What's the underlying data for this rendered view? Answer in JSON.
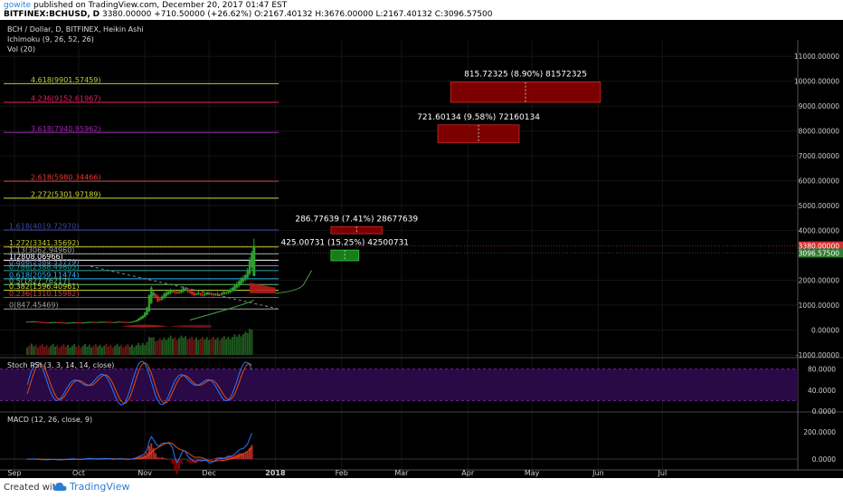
{
  "header": {
    "author": "gowite",
    "published_text": "published on TradingView.com, December 20, 2017 01:47 EST",
    "symbol": "BITFINEX:BCHUSD,",
    "interval": "D",
    "last": "3380.00000",
    "change": "+710.50000 (+26.62%)",
    "open_label": "O:",
    "open": "2167.40132",
    "high_label": "H:",
    "high": "3676.00000",
    "low_label": "L:",
    "low": "2167.40132",
    "close_label": "C:",
    "close": "3096.57500"
  },
  "legend": {
    "title": "BCH / Dollar, D, BITFINEX, Heikin Ashi",
    "ichimoku": "Ichimoku (9, 26, 52, 26)",
    "vol": "Vol (20)"
  },
  "footer": {
    "created_with": "Created with",
    "brand": "TradingView",
    "logo_icon": "tradingview-cloud-icon"
  },
  "colors": {
    "background": "#000000",
    "candle_up": "#2e9e2e",
    "candle_down": "#c62828",
    "ichimoku_red": "#b71c1c",
    "ichimoku_green": "#43a047",
    "measure_box_red": "#8b0000",
    "measure_box_green": "#1b8a1b",
    "stoch_k": "#2979ff",
    "stoch_d": "#e65100",
    "stoch_band": "#2e0a4e",
    "macd_line": "#2979ff",
    "signal_line": "#e65100",
    "hist": "#c62828",
    "last_price_badge": "#d32f2f",
    "close_badge": "#2e7d32"
  },
  "chart_data": [
    {
      "type": "candlestick",
      "name": "price",
      "title": "BCH / Dollar, D, BITFINEX, Heikin Ashi",
      "ylim": [
        -1000,
        12000
      ],
      "y_ticks": [
        "11000.00000",
        "10000.00000",
        "9000.00000",
        "8000.00000",
        "7000.00000",
        "6000.00000",
        "5000.00000",
        "4000.00000",
        "2000.00000",
        "1000.00000",
        "0.00000",
        "-1000.00000"
      ],
      "x_ticks": [
        "Sep",
        "Oct",
        "Nov",
        "Dec",
        "2018",
        "Feb",
        "Mar",
        "Apr",
        "May",
        "Jun",
        "Jul"
      ],
      "x_range_days": [
        -112,
        223
      ],
      "last_price_label": "3380.00000",
      "last_price": 3380,
      "close_label": "3096.57500",
      "close": 3096.575,
      "fibonacci": [
        {
          "label": "4.618(9901.57459)",
          "value": 9901.57459,
          "color": "#c0ca33"
        },
        {
          "label": "4.236(9152.61967)",
          "value": 9152.61967,
          "color": "#e91e63"
        },
        {
          "label": "3.618(7940.95962)",
          "value": 7940.95962,
          "color": "#9c27b0"
        },
        {
          "label": "2.618(5980.34466)",
          "value": 5980.34466,
          "color": "#e53935"
        },
        {
          "label": "2.272(5301.97189)",
          "value": 5301.97189,
          "color": "#cddc39"
        },
        {
          "label": "1.618(4019.72970)",
          "value": 4019.7297,
          "color": "#3949ab"
        },
        {
          "label": "1.272(3341.35692)",
          "value": 3341.35692,
          "color": "#c0ca33"
        },
        {
          "label": "1.13(3062.94960)",
          "value": 3062.9496,
          "color": "#9e9e9e"
        },
        {
          "label": "1(2808.06966)",
          "value": 2808.06966,
          "color": "#ffffff"
        },
        {
          "label": "0.886(2584.53779)",
          "value": 2584.53779,
          "color": "#7986cb"
        },
        {
          "label": "0.786(2388.49805)",
          "value": 2388.49805,
          "color": "#26a69a"
        },
        {
          "label": "0.618(2059.11474)",
          "value": 2059.11474,
          "color": "#29b6f6"
        },
        {
          "label": "0.5(1827.76217)",
          "value": 1827.76217,
          "color": "#66bb6a"
        },
        {
          "label": "0.382(1596.40961)",
          "value": 1596.40961,
          "color": "#cddc39"
        },
        {
          "label": "0.236(1310.15982)",
          "value": 1310.15982,
          "color": "#e53935"
        },
        {
          "label": "0(847.45469)",
          "value": 847.45469,
          "color": "#9e9e9e"
        }
      ],
      "measures": [
        {
          "label": "815.72325 (8.90%) 81572325",
          "from": 9152.61967,
          "to": 9968.34292,
          "day_start": 92,
          "day_end": 162,
          "color": "#8b0000"
        },
        {
          "label": "721.60134 (9.58%) 72160134",
          "from": 7527,
          "to": 8248.6,
          "day_start": 86,
          "day_end": 124,
          "color": "#8b0000"
        },
        {
          "label": "286.77639 (7.41%) 28677639",
          "from": 3870,
          "to": 4156.8,
          "day_start": 36,
          "day_end": 60,
          "color": "#8b0000"
        },
        {
          "label": "425.00731 (15.25%) 42500731",
          "from": 2787,
          "to": 3212,
          "day_start": 36,
          "day_end": 49,
          "color": "#1b8a1b"
        }
      ]
    },
    {
      "type": "line",
      "name": "stoch_rsi",
      "title": "Stoch RSI (3, 3, 14, 14, close)",
      "ylim": [
        0,
        100
      ],
      "y_ticks": [
        "80.0000",
        "40.0000",
        "0.0000"
      ],
      "band": [
        20,
        80
      ]
    },
    {
      "type": "line",
      "name": "macd",
      "title": "MACD (12, 26, close, 9)",
      "ylim": [
        -80,
        340
      ],
      "y_ticks": [
        "200.0000",
        "0.0000"
      ]
    }
  ],
  "series_seed": {
    "days": 106,
    "price_close": [
      340,
      335,
      345,
      350,
      330,
      320,
      310,
      305,
      300,
      295,
      300,
      310,
      320,
      315,
      305,
      300,
      290,
      285,
      290,
      295,
      300,
      305,
      310,
      300,
      295,
      290,
      300,
      310,
      320,
      330,
      325,
      320,
      315,
      320,
      330,
      335,
      330,
      325,
      320,
      315,
      310,
      320,
      330,
      340,
      330,
      320,
      315,
      310,
      320,
      335,
      360,
      400,
      460,
      520,
      580,
      700,
      900,
      1400,
      1700,
      1500,
      1300,
      1150,
      1200,
      1350,
      1450,
      1500,
      1550,
      1600,
      1550,
      1500,
      1480,
      1520,
      1600,
      1700,
      1650,
      1550,
      1500,
      1450,
      1400,
      1450,
      1500,
      1420,
      1380,
      1450,
      1500,
      1470,
      1430,
      1400,
      1430,
      1450,
      1420,
      1480,
      1520,
      1500,
      1560,
      1620,
      1700,
      1780,
      1850,
      1950,
      2050,
      2100,
      2200,
      2400,
      2800,
      3096
    ]
  }
}
